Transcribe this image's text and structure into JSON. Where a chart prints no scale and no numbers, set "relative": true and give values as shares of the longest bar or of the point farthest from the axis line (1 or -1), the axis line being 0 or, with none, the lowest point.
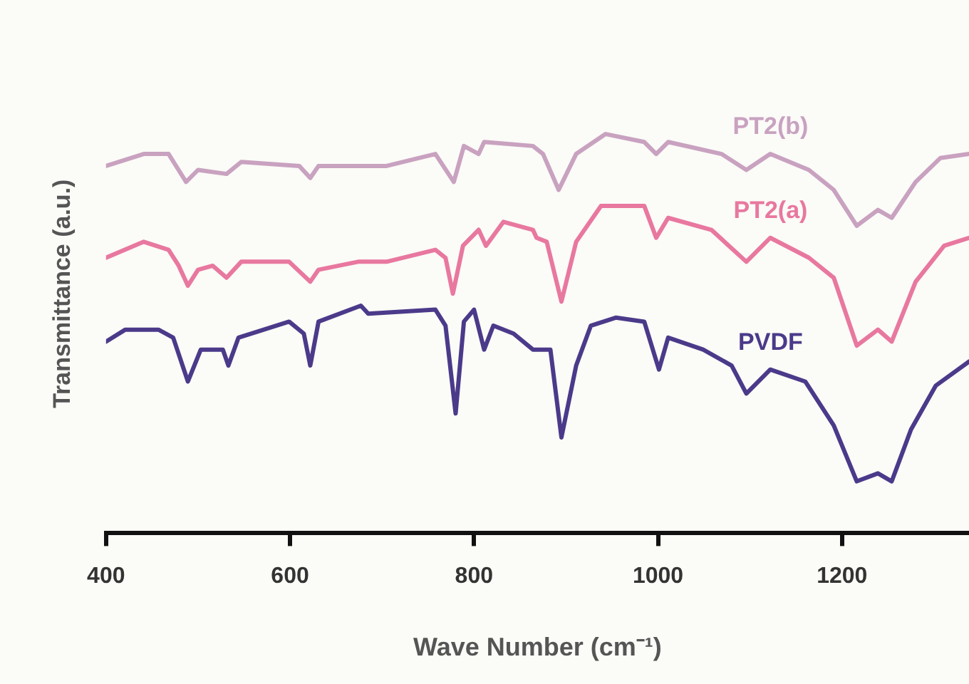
{
  "chart_data": {
    "type": "line",
    "xlabel": "Wave Number (cm⁻¹)",
    "ylabel": "Transmittance (a.u.)",
    "relative": true,
    "xlim": [
      400,
      1338
    ],
    "xticks": [
      400,
      600,
      800,
      1000,
      1200
    ],
    "grid": false,
    "legend": false,
    "marker": "none",
    "line_style": "solid",
    "series": [
      {
        "name": "PT2(b)",
        "color": "#c9a2c0",
        "x": [
          400,
          441,
          468,
          487,
          500,
          531,
          547,
          610,
          622,
          631,
          705,
          758,
          778,
          789,
          805,
          811,
          864,
          875,
          892,
          911,
          943,
          985,
          998,
          1011,
          1069,
          1096,
          1122,
          1164,
          1191,
          1216,
          1239,
          1254,
          1280,
          1307,
          1338
        ],
        "values": [
          0.92,
          0.95,
          0.95,
          0.88,
          0.91,
          0.9,
          0.93,
          0.92,
          0.89,
          0.92,
          0.92,
          0.95,
          0.88,
          0.97,
          0.95,
          0.98,
          0.97,
          0.95,
          0.86,
          0.95,
          1,
          0.98,
          0.95,
          0.98,
          0.95,
          0.91,
          0.95,
          0.91,
          0.86,
          0.77,
          0.81,
          0.79,
          0.88,
          0.94,
          0.95
        ]
      },
      {
        "name": "PT2(a)",
        "color": "#e8789f",
        "x": [
          400,
          441,
          468,
          479,
          489,
          500,
          516,
          531,
          547,
          599,
          622,
          631,
          674,
          705,
          758,
          769,
          777,
          788,
          805,
          813,
          832,
          864,
          868,
          879,
          895,
          911,
          938,
          985,
          998,
          1011,
          1058,
          1096,
          1122,
          1164,
          1191,
          1216,
          1239,
          1254,
          1280,
          1311,
          1338
        ],
        "values": [
          0.69,
          0.73,
          0.71,
          0.67,
          0.62,
          0.66,
          0.67,
          0.64,
          0.68,
          0.68,
          0.63,
          0.66,
          0.68,
          0.68,
          0.71,
          0.69,
          0.6,
          0.72,
          0.76,
          0.72,
          0.78,
          0.76,
          0.74,
          0.73,
          0.58,
          0.73,
          0.82,
          0.82,
          0.74,
          0.79,
          0.76,
          0.68,
          0.74,
          0.69,
          0.64,
          0.47,
          0.51,
          0.48,
          0.63,
          0.72,
          0.74
        ]
      },
      {
        "name": "PVDF",
        "color": "#4b3a8a",
        "x": [
          400,
          421,
          457,
          473,
          489,
          503,
          527,
          533,
          544,
          599,
          615,
          622,
          631,
          677,
          685,
          758,
          769,
          780,
          789,
          800,
          811,
          821,
          843,
          864,
          883,
          895,
          911,
          927,
          954,
          985,
          1001,
          1011,
          1049,
          1080,
          1096,
          1122,
          1160,
          1191,
          1216,
          1239,
          1254,
          1275,
          1302,
          1338
        ],
        "values": [
          0.48,
          0.51,
          0.51,
          0.49,
          0.38,
          0.46,
          0.46,
          0.42,
          0.49,
          0.53,
          0.5,
          0.42,
          0.53,
          0.57,
          0.55,
          0.56,
          0.52,
          0.3,
          0.53,
          0.56,
          0.46,
          0.52,
          0.5,
          0.46,
          0.46,
          0.24,
          0.42,
          0.52,
          0.54,
          0.53,
          0.41,
          0.49,
          0.46,
          0.42,
          0.35,
          0.41,
          0.38,
          0.27,
          0.13,
          0.15,
          0.13,
          0.26,
          0.37,
          0.43
        ]
      }
    ]
  }
}
